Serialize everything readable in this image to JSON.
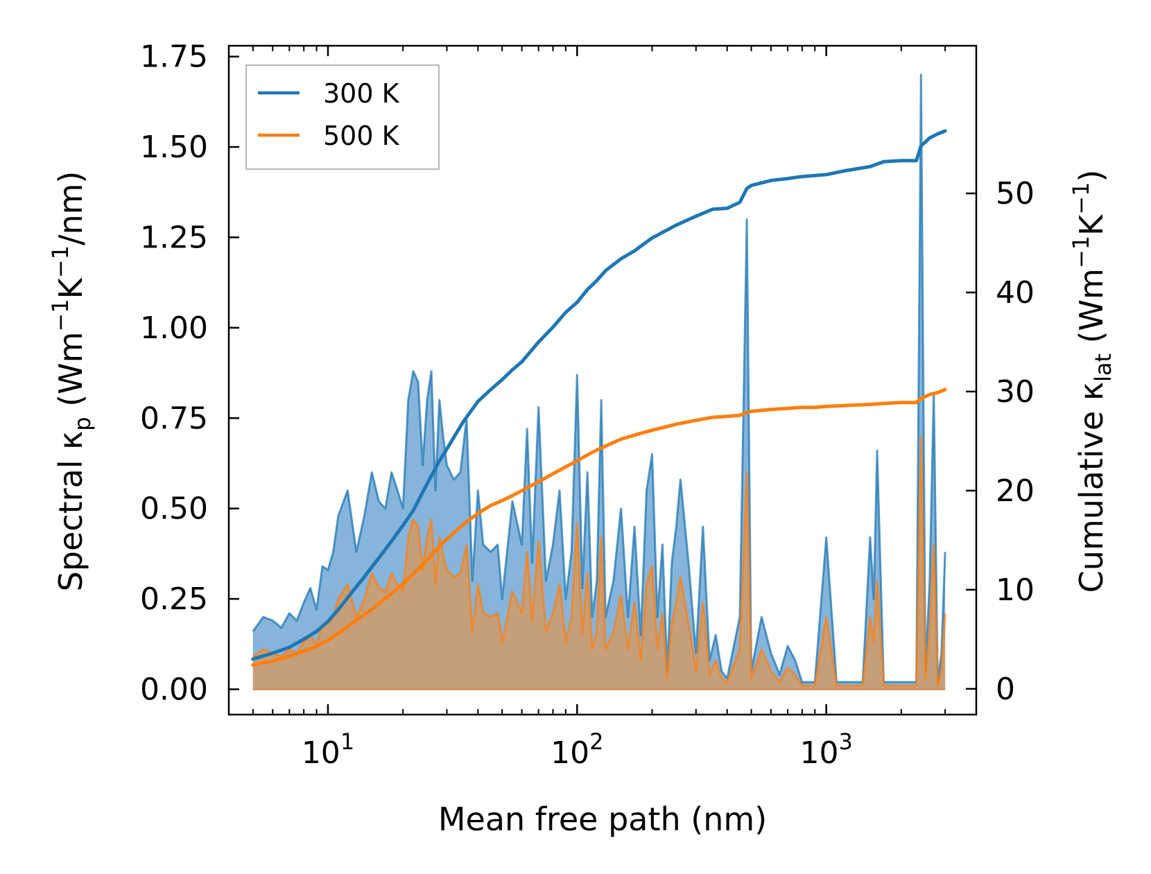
{
  "chart_data": {
    "type": "line",
    "xscale": "log",
    "xlabel": "Mean free path (nm)",
    "ylabel_left": "Spectral κ_p (Wm^-1K^-1/nm)",
    "ylabel_right": "Cumulative κ_lat (Wm^-1K^-1)",
    "xlim": [
      4,
      4000
    ],
    "ylim_left": [
      -0.07,
      1.78
    ],
    "ylim_right": [
      -2.6,
      64.9
    ],
    "x_ticks": [
      {
        "value": 10,
        "base": "10",
        "exp": "1"
      },
      {
        "value": 100,
        "base": "10",
        "exp": "2"
      },
      {
        "value": 1000,
        "base": "10",
        "exp": "3"
      }
    ],
    "y_left_ticks": [
      "0.00",
      "0.25",
      "0.50",
      "0.75",
      "1.00",
      "1.25",
      "1.50",
      "1.75"
    ],
    "y_left_tick_values": [
      0,
      0.25,
      0.5,
      0.75,
      1.0,
      1.25,
      1.5,
      1.75
    ],
    "y_right_ticks": [
      "0",
      "10",
      "20",
      "30",
      "40",
      "50"
    ],
    "y_right_tick_values": [
      0,
      10,
      20,
      30,
      40,
      50
    ],
    "legend": {
      "position": "upper-left",
      "entries": [
        "300 K",
        "500 K"
      ]
    },
    "colors": {
      "300 K": "#1f77b4",
      "500 K": "#ff7f0e",
      "fill_300": "#7fb0d8",
      "fill_500": "#c89e74"
    },
    "spectral_series": [
      {
        "name": "300 K",
        "x": [
          5,
          5.5,
          6,
          6.5,
          7,
          7.5,
          8,
          8.5,
          9,
          9.5,
          10,
          10.5,
          11,
          12,
          13,
          14,
          15,
          16,
          17,
          18,
          19,
          20,
          21,
          22,
          23,
          24,
          25,
          26,
          27,
          28,
          29,
          30,
          32,
          34,
          36,
          38,
          40,
          42,
          45,
          48,
          50,
          55,
          60,
          63,
          66,
          70,
          75,
          80,
          85,
          90,
          95,
          100,
          105,
          110,
          115,
          120,
          125,
          130,
          140,
          150,
          160,
          170,
          180,
          190,
          200,
          210,
          220,
          230,
          240,
          250,
          260,
          280,
          300,
          320,
          340,
          360,
          380,
          400,
          450,
          480,
          500,
          550,
          600,
          650,
          700,
          750,
          800,
          900,
          1000,
          1100,
          1200,
          1300,
          1400,
          1500,
          1550,
          1600,
          1700,
          1800,
          2000,
          2200,
          2300,
          2400,
          2500,
          2600,
          2700,
          2800,
          2900,
          3000
        ],
        "values": [
          0.16,
          0.2,
          0.19,
          0.17,
          0.21,
          0.19,
          0.24,
          0.28,
          0.22,
          0.34,
          0.33,
          0.38,
          0.48,
          0.55,
          0.38,
          0.48,
          0.6,
          0.52,
          0.5,
          0.6,
          0.55,
          0.5,
          0.8,
          0.88,
          0.85,
          0.62,
          0.8,
          0.88,
          0.55,
          0.8,
          0.7,
          0.62,
          0.58,
          0.6,
          0.75,
          0.3,
          0.55,
          0.4,
          0.38,
          0.4,
          0.25,
          0.52,
          0.4,
          0.72,
          0.35,
          0.78,
          0.3,
          0.4,
          0.55,
          0.25,
          0.38,
          0.87,
          0.28,
          0.6,
          0.2,
          0.3,
          0.8,
          0.2,
          0.3,
          0.5,
          0.2,
          0.45,
          0.15,
          0.55,
          0.65,
          0.2,
          0.4,
          0.05,
          0.35,
          0.45,
          0.58,
          0.35,
          0.1,
          0.45,
          0.08,
          0.15,
          0.05,
          0.03,
          0.2,
          1.3,
          0.05,
          0.2,
          0.1,
          0.04,
          0.12,
          0.08,
          0.02,
          0.02,
          0.42,
          0.02,
          0.02,
          0.02,
          0.02,
          0.42,
          0.25,
          0.66,
          0.02,
          0.02,
          0.02,
          0.02,
          0.02,
          1.7,
          0.05,
          0.3,
          0.82,
          0.02,
          0.1,
          0.38
        ]
      },
      {
        "name": "500 K",
        "x": [
          5,
          5.5,
          6,
          6.5,
          7,
          7.5,
          8,
          8.5,
          9,
          9.5,
          10,
          10.5,
          11,
          12,
          13,
          14,
          15,
          16,
          17,
          18,
          19,
          20,
          21,
          22,
          23,
          24,
          25,
          26,
          27,
          28,
          29,
          30,
          32,
          34,
          36,
          38,
          40,
          42,
          45,
          48,
          50,
          55,
          60,
          63,
          66,
          70,
          75,
          80,
          85,
          90,
          95,
          100,
          105,
          110,
          115,
          120,
          125,
          130,
          140,
          150,
          160,
          170,
          180,
          190,
          200,
          210,
          220,
          230,
          240,
          250,
          260,
          280,
          300,
          320,
          340,
          360,
          380,
          400,
          450,
          480,
          500,
          550,
          600,
          650,
          700,
          750,
          800,
          900,
          1000,
          1100,
          1200,
          1300,
          1400,
          1500,
          1550,
          1600,
          1700,
          1800,
          2000,
          2200,
          2300,
          2400,
          2500,
          2600,
          2700,
          2800,
          2900,
          3000
        ],
        "values": [
          0.09,
          0.11,
          0.1,
          0.09,
          0.11,
          0.1,
          0.13,
          0.15,
          0.12,
          0.18,
          0.18,
          0.2,
          0.25,
          0.29,
          0.2,
          0.25,
          0.32,
          0.28,
          0.27,
          0.32,
          0.29,
          0.27,
          0.42,
          0.47,
          0.45,
          0.33,
          0.42,
          0.47,
          0.29,
          0.42,
          0.37,
          0.33,
          0.31,
          0.32,
          0.4,
          0.16,
          0.29,
          0.21,
          0.2,
          0.21,
          0.13,
          0.27,
          0.21,
          0.38,
          0.19,
          0.41,
          0.16,
          0.21,
          0.29,
          0.13,
          0.2,
          0.46,
          0.15,
          0.32,
          0.11,
          0.16,
          0.42,
          0.11,
          0.16,
          0.26,
          0.11,
          0.24,
          0.08,
          0.29,
          0.34,
          0.11,
          0.21,
          0.03,
          0.18,
          0.24,
          0.31,
          0.18,
          0.05,
          0.24,
          0.04,
          0.08,
          0.03,
          0.02,
          0.11,
          0.6,
          0.03,
          0.11,
          0.05,
          0.02,
          0.06,
          0.04,
          0.01,
          0.01,
          0.2,
          0.01,
          0.01,
          0.01,
          0.01,
          0.2,
          0.13,
          0.3,
          0.01,
          0.01,
          0.01,
          0.01,
          0.01,
          0.7,
          0.03,
          0.16,
          0.4,
          0.01,
          0.05,
          0.21
        ]
      }
    ],
    "cumulative_series": [
      {
        "name": "300 K",
        "x": [
          5,
          6,
          7,
          8,
          9,
          10,
          11,
          12,
          13,
          14,
          15,
          16,
          18,
          20,
          22,
          25,
          28,
          30,
          35,
          40,
          45,
          50,
          55,
          60,
          70,
          80,
          90,
          100,
          110,
          120,
          130,
          150,
          170,
          200,
          250,
          300,
          350,
          400,
          450,
          480,
          500,
          600,
          700,
          800,
          900,
          1000,
          1200,
          1500,
          1700,
          2000,
          2300,
          2400,
          2500,
          2600,
          2800,
          3000
        ],
        "values": [
          3,
          3.6,
          4.2,
          5.0,
          5.8,
          6.8,
          8.0,
          9.2,
          10.3,
          11.3,
          12.3,
          13.2,
          14.9,
          16.5,
          18.0,
          20.7,
          23.0,
          24.2,
          27.0,
          29.0,
          30.2,
          31.2,
          32.2,
          33.0,
          35.0,
          36.5,
          38.0,
          39.0,
          40.3,
          41.2,
          42.2,
          43.4,
          44.2,
          45.5,
          46.8,
          47.7,
          48.4,
          48.5,
          49.1,
          50.5,
          50.8,
          51.3,
          51.5,
          51.7,
          51.8,
          51.9,
          52.3,
          52.7,
          53.2,
          53.3,
          53.3,
          54.8,
          55.2,
          55.6,
          56.0,
          56.3
        ]
      },
      {
        "name": "500 K",
        "x": [
          5,
          6,
          7,
          8,
          9,
          10,
          11,
          12,
          13,
          14,
          15,
          16,
          18,
          20,
          22,
          25,
          28,
          30,
          35,
          40,
          45,
          50,
          55,
          60,
          70,
          80,
          90,
          100,
          110,
          120,
          130,
          150,
          170,
          200,
          250,
          300,
          350,
          400,
          450,
          480,
          500,
          600,
          700,
          800,
          900,
          1000,
          1200,
          1500,
          1700,
          2000,
          2300,
          2400,
          2500,
          2600,
          2800,
          3000
        ],
        "values": [
          2.4,
          2.8,
          3.3,
          3.8,
          4.3,
          4.9,
          5.6,
          6.3,
          6.9,
          7.5,
          8.0,
          8.6,
          9.6,
          10.6,
          11.6,
          13.0,
          14.4,
          15.1,
          16.6,
          17.7,
          18.5,
          19.0,
          19.5,
          20.0,
          20.9,
          21.7,
          22.4,
          23.0,
          23.6,
          24.1,
          24.5,
          25.2,
          25.6,
          26.1,
          26.7,
          27.1,
          27.4,
          27.5,
          27.6,
          27.9,
          28.0,
          28.2,
          28.3,
          28.4,
          28.4,
          28.5,
          28.6,
          28.7,
          28.8,
          28.9,
          28.9,
          29.3,
          29.5,
          29.7,
          29.9,
          30.2
        ]
      }
    ]
  }
}
